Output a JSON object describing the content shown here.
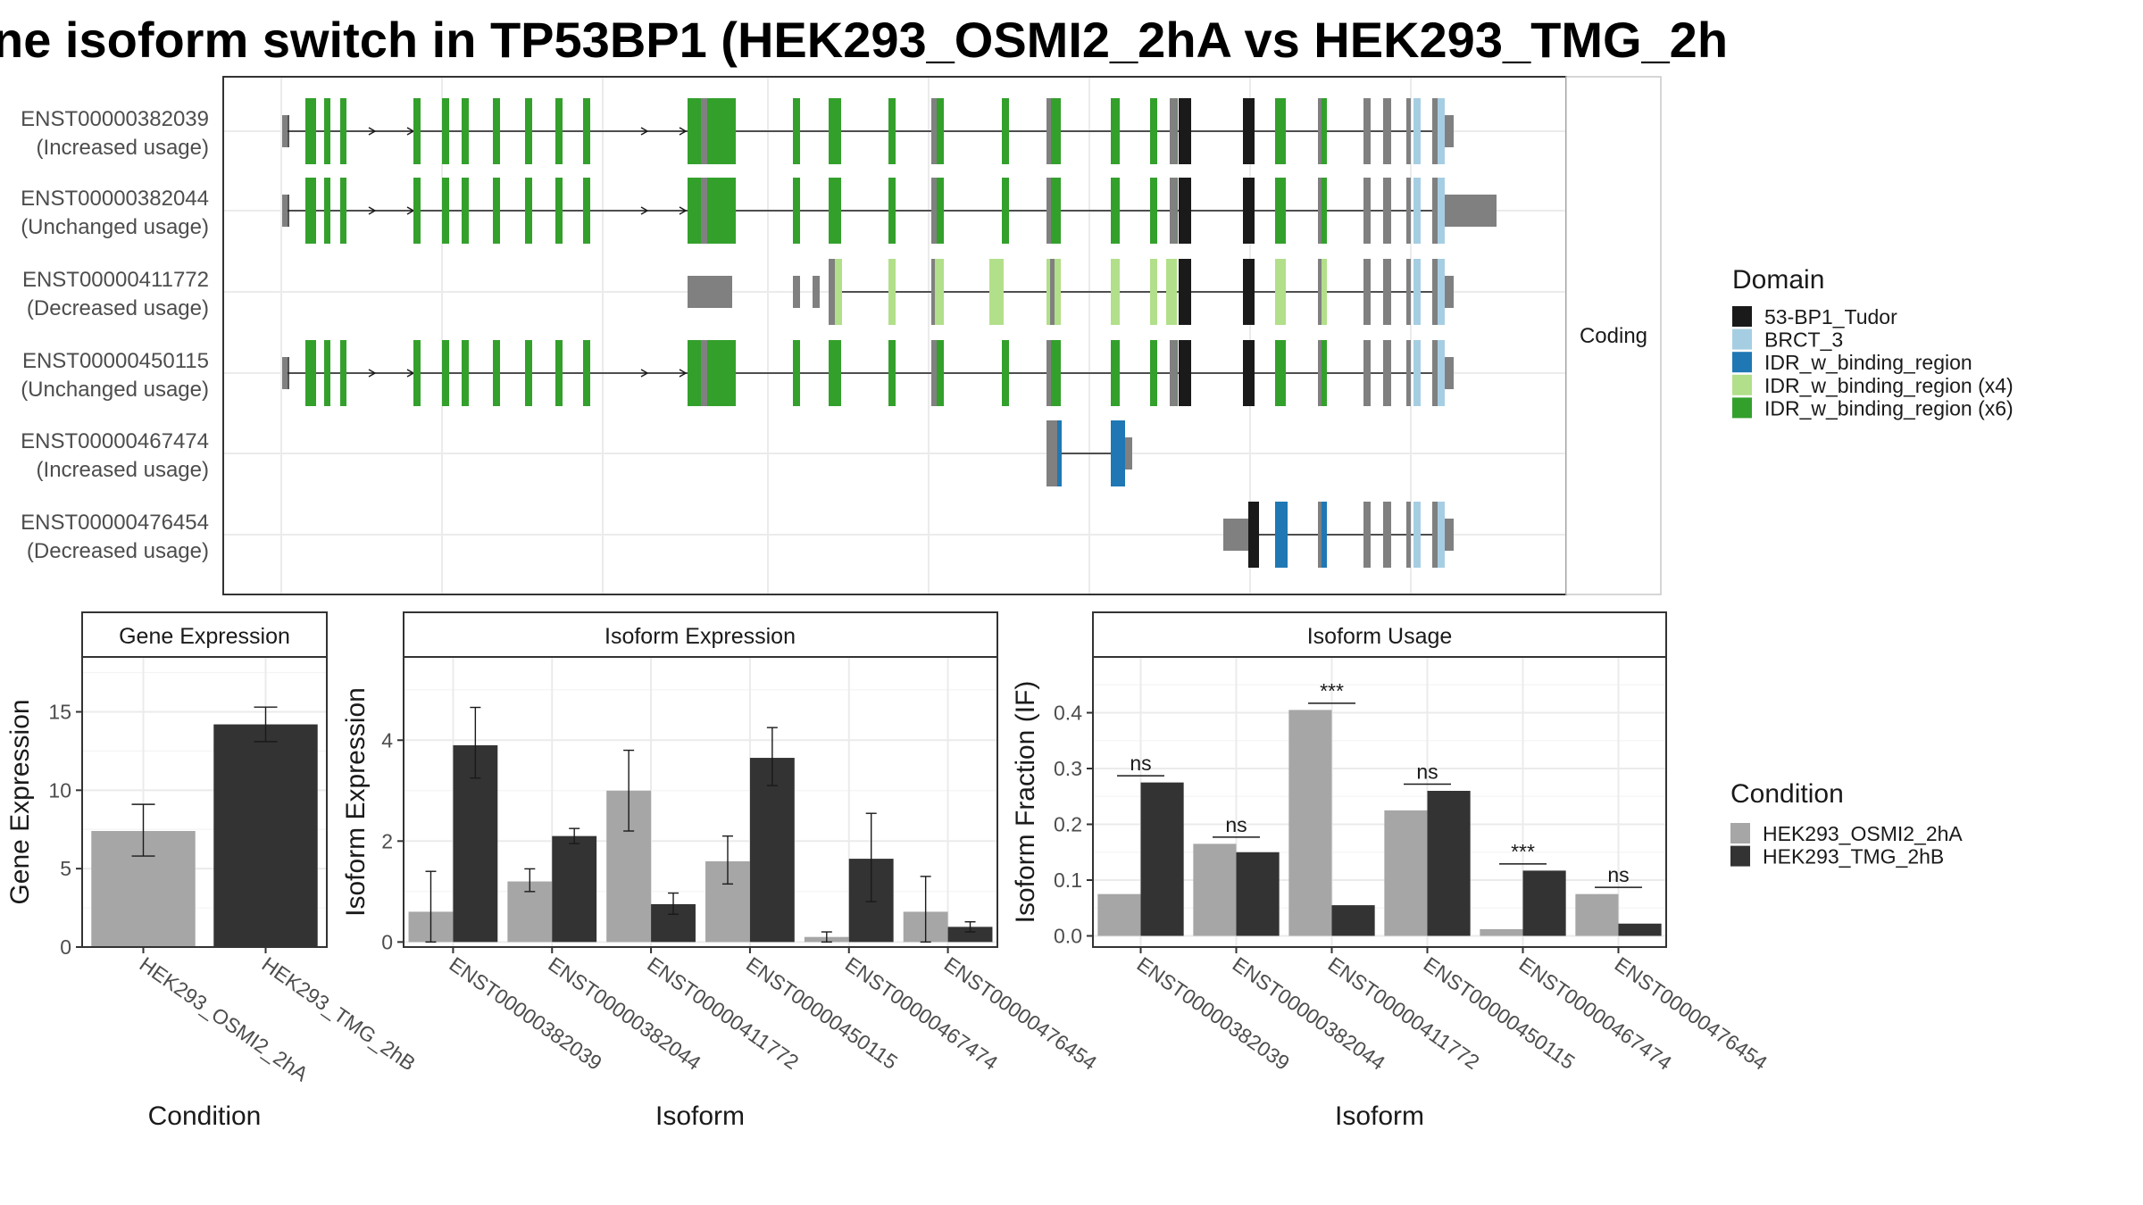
{
  "title": "ne isoform switch in TP53BP1 (HEK293_OSMI2_2hA vs HEK293_TMG_2h",
  "transcripts": [
    {
      "id": "ENST00000382039",
      "usage": "(Increased usage)"
    },
    {
      "id": "ENST00000382044",
      "usage": "(Unchanged usage)"
    },
    {
      "id": "ENST00000411772",
      "usage": "(Decreased usage)"
    },
    {
      "id": "ENST00000450115",
      "usage": "(Unchanged usage)"
    },
    {
      "id": "ENST00000467474",
      "usage": "(Increased usage)"
    },
    {
      "id": "ENST00000476454",
      "usage": "(Decreased usage)"
    }
  ],
  "coding_label": "Coding",
  "domain_legend": {
    "title": "Domain",
    "items": [
      {
        "label": "53-BP1_Tudor",
        "color": "#1a1a1a"
      },
      {
        "label": "BRCT_3",
        "color": "#a6cee3"
      },
      {
        "label": "IDR_w_binding_region",
        "color": "#1f78b4"
      },
      {
        "label": "IDR_w_binding_region (x4)",
        "color": "#b2df8a"
      },
      {
        "label": "IDR_w_binding_region (x6)",
        "color": "#33a02c"
      }
    ]
  },
  "condition_legend": {
    "title": "Condition",
    "items": [
      {
        "label": "HEK293_OSMI2_2hA",
        "color": "#a6a6a6"
      },
      {
        "label": "HEK293_TMG_2hB",
        "color": "#333333"
      }
    ]
  },
  "chart_data": [
    {
      "type": "bar",
      "title": "Gene Expression",
      "xlabel": "Condition",
      "ylabel": "Gene Expression",
      "ylim": [
        0,
        18.5
      ],
      "yticks": [
        0,
        5,
        10,
        15
      ],
      "categories": [
        "HEK293_OSMI2_2hA",
        "HEK293_TMG_2hB"
      ],
      "values": [
        7.4,
        14.2
      ],
      "errors": [
        [
          5.8,
          9.1
        ],
        [
          13.1,
          15.3
        ]
      ],
      "colors": [
        "#a6a6a6",
        "#333333"
      ]
    },
    {
      "type": "bar",
      "title": "Isoform Expression",
      "xlabel": "Isoform",
      "ylabel": "Isoform Expression",
      "ylim": [
        -0.1,
        5.65
      ],
      "yticks": [
        0,
        2,
        4
      ],
      "categories": [
        "ENST00000382039",
        "ENST00000382044",
        "ENST00000411772",
        "ENST00000450115",
        "ENST00000467474",
        "ENST00000476454"
      ],
      "series": [
        {
          "name": "HEK293_OSMI2_2hA",
          "color": "#a6a6a6",
          "values": [
            0.6,
            1.2,
            3.0,
            1.6,
            0.1,
            0.6
          ],
          "errors": [
            [
              0.0,
              1.4
            ],
            [
              1.0,
              1.45
            ],
            [
              2.2,
              3.8
            ],
            [
              1.15,
              2.1
            ],
            [
              0.0,
              0.2
            ],
            [
              0.0,
              1.3
            ]
          ]
        },
        {
          "name": "HEK293_TMG_2hB",
          "color": "#333333",
          "values": [
            3.9,
            2.1,
            0.75,
            3.65,
            1.65,
            0.3
          ],
          "errors": [
            [
              3.25,
              4.65
            ],
            [
              1.95,
              2.25
            ],
            [
              0.55,
              0.97
            ],
            [
              3.1,
              4.25
            ],
            [
              0.8,
              2.55
            ],
            [
              0.2,
              0.4
            ]
          ]
        }
      ]
    },
    {
      "type": "bar",
      "title": "Isoform Usage",
      "xlabel": "Isoform",
      "ylabel": "Isoform Fraction (IF)",
      "ylim": [
        -0.02,
        0.5
      ],
      "yticks": [
        0.0,
        0.1,
        0.2,
        0.3,
        0.4
      ],
      "categories": [
        "ENST00000382039",
        "ENST00000382044",
        "ENST00000411772",
        "ENST00000450115",
        "ENST00000467474",
        "ENST00000476454"
      ],
      "series": [
        {
          "name": "HEK293_OSMI2_2hA",
          "color": "#a6a6a6",
          "values": [
            0.075,
            0.165,
            0.405,
            0.225,
            0.012,
            0.075
          ]
        },
        {
          "name": "HEK293_TMG_2hB",
          "color": "#333333",
          "values": [
            0.275,
            0.15,
            0.055,
            0.26,
            0.117,
            0.022
          ]
        }
      ],
      "significance": [
        "ns",
        "ns",
        "***",
        "ns",
        "***",
        "ns"
      ]
    }
  ]
}
